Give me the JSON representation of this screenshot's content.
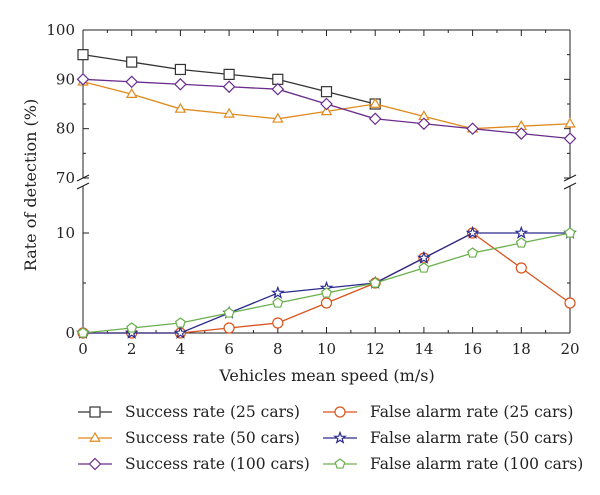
{
  "chart_data": {
    "type": "line",
    "xlabel": "Vehicles mean speed (m/s)",
    "ylabel": "Rate of detection (%)",
    "x": [
      0,
      2,
      4,
      6,
      8,
      10,
      12,
      14,
      16,
      18,
      20
    ],
    "xlim": [
      0,
      20
    ],
    "x_ticks": [
      "0",
      "2",
      "4",
      "6",
      "8",
      "10",
      "12",
      "14",
      "16",
      "18",
      "20"
    ],
    "y_axis_break": true,
    "ylim_upper": [
      70,
      100
    ],
    "ylim_lower": [
      0,
      10
    ],
    "y_ticks_upper": [
      "70",
      "80",
      "90",
      "100"
    ],
    "y_ticks_lower": [
      "0",
      "10"
    ],
    "grid": false,
    "legend_position": "bottom",
    "series": [
      {
        "name": "Success rate (25 cars)",
        "marker": "square",
        "color": "#333333",
        "panel": "upper",
        "values": [
          95,
          93.5,
          92,
          91,
          90,
          87.5,
          85,
          null,
          null,
          null,
          null
        ]
      },
      {
        "name": "Success rate (50 cars)",
        "marker": "triangle",
        "color": "#e08a1e",
        "panel": "upper",
        "values": [
          89.5,
          87,
          84,
          83,
          82,
          83.5,
          85,
          82.5,
          80,
          80.5,
          81
        ]
      },
      {
        "name": "Success rate (100 cars)",
        "marker": "diamond",
        "color": "#6a2c8c",
        "panel": "upper",
        "values": [
          90,
          89.5,
          89,
          88.5,
          88,
          85,
          82,
          81,
          80,
          79,
          78
        ]
      },
      {
        "name": "False alarm rate (25 cars)",
        "marker": "circle",
        "color": "#d9541e",
        "panel": "lower",
        "values": [
          0,
          0,
          0,
          0.5,
          1,
          3,
          5,
          7.5,
          10,
          6.5,
          3
        ]
      },
      {
        "name": "False alarm rate (50 cars)",
        "marker": "star",
        "color": "#2b2b8c",
        "panel": "lower",
        "values": [
          0,
          0,
          0,
          2,
          4,
          4.5,
          5,
          7.5,
          10,
          10,
          10
        ]
      },
      {
        "name": "False alarm rate (100 cars)",
        "marker": "pentagon",
        "color": "#6ab04c",
        "panel": "lower",
        "values": [
          0,
          0.5,
          1,
          2,
          3,
          4,
          5,
          6.5,
          8,
          9,
          10
        ]
      }
    ]
  }
}
